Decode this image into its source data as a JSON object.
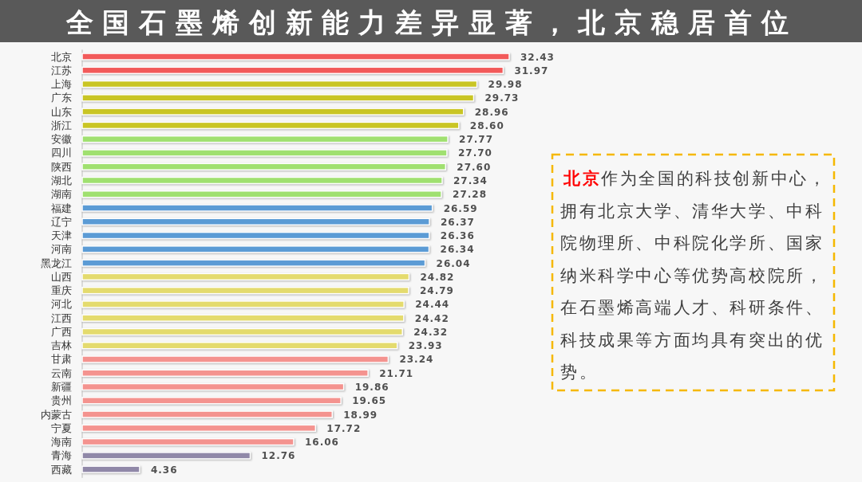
{
  "chart_data": {
    "type": "bar",
    "orientation": "horizontal",
    "title": "全国石墨烯创新能力差异显著，北京稳居首位",
    "categories": [
      "北京",
      "江苏",
      "上海",
      "广东",
      "山东",
      "浙江",
      "安徽",
      "四川",
      "陕西",
      "湖北",
      "湖南",
      "福建",
      "辽宁",
      "天津",
      "河南",
      "黑龙江",
      "山西",
      "重庆",
      "河北",
      "江西",
      "广西",
      "吉林",
      "甘肃",
      "云南",
      "新疆",
      "贵州",
      "内蒙古",
      "宁夏",
      "海南",
      "青海",
      "西藏"
    ],
    "values": [
      32.43,
      31.97,
      29.98,
      29.73,
      28.96,
      28.6,
      27.77,
      27.7,
      27.6,
      27.34,
      27.28,
      26.59,
      26.37,
      26.36,
      26.34,
      26.04,
      24.82,
      24.79,
      24.44,
      24.42,
      24.32,
      23.93,
      23.24,
      21.71,
      19.86,
      19.65,
      18.99,
      17.72,
      16.06,
      12.76,
      4.36
    ],
    "value_labels": [
      "32.43",
      "31.97",
      "29.98",
      "29.73",
      "28.96",
      "28.60",
      "27.77",
      "27.70",
      "27.60",
      "27.34",
      "27.28",
      "26.59",
      "26.37",
      "26.36",
      "26.34",
      "26.04",
      "24.82",
      "24.79",
      "24.44",
      "24.42",
      "24.32",
      "23.93",
      "23.24",
      "21.71",
      "19.86",
      "19.65",
      "18.99",
      "17.72",
      "16.06",
      "12.76",
      "4.36"
    ],
    "colors": [
      "#f25a5a",
      "#f25a5a",
      "#c9c524",
      "#c9c524",
      "#c9c524",
      "#c9c524",
      "#a0e070",
      "#a0e070",
      "#a0e070",
      "#a0e070",
      "#a0e070",
      "#5b9bd5",
      "#5b9bd5",
      "#5b9bd5",
      "#5b9bd5",
      "#5b9bd5",
      "#e4db6e",
      "#e4db6e",
      "#e4db6e",
      "#e4db6e",
      "#e4db6e",
      "#e4db6e",
      "#f4938f",
      "#f4938f",
      "#f4938f",
      "#f4938f",
      "#f4938f",
      "#f4938f",
      "#f4938f",
      "#9088a8",
      "#9088a8"
    ],
    "tick_labels": "y",
    "annotations": [
      "**北京**作为全国的科技创新中心，拥有北京大学、清华大学、中科院物理所、中科院化学所、国家纳米科学中心等优势高校院所，在石墨烯高端人才、科研条件、科技成果等方面均具有突出的优势。"
    ]
  }
}
